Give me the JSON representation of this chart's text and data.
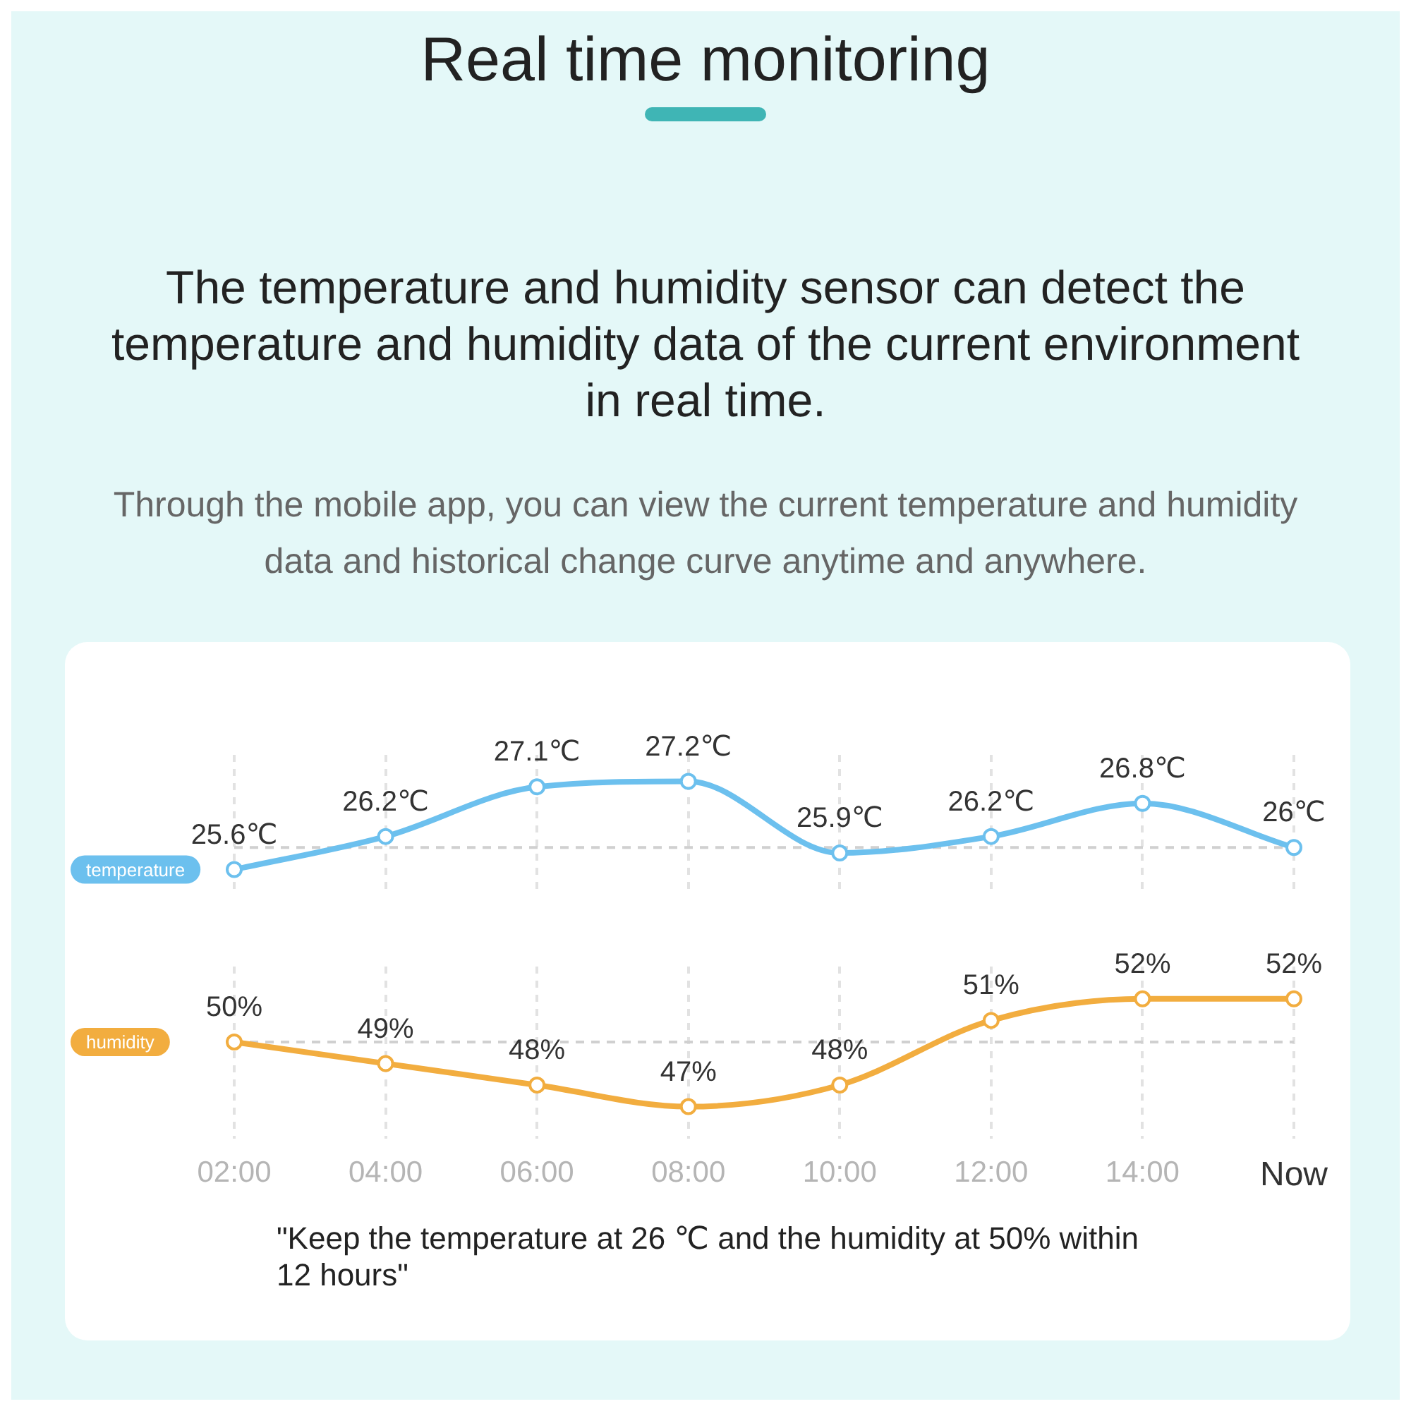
{
  "chart_data": [
    {
      "type": "line",
      "title": "Real time monitoring",
      "subtitle": "The temperature and humidity sensor can detect the temperature and humidity data of the current environment in real time.",
      "annotations": [
        "Through the mobile app, you can view the current temperature and humidity data and historical change curve anytime and anywhere."
      ],
      "categories": [
        null,
        null,
        null,
        null,
        null,
        null,
        null,
        null
      ],
      "series": [
        {
          "name": "temperature",
          "color": "#6cc0ee",
          "values": [
            25.6,
            26.2,
            27.1,
            27.2,
            25.9,
            26.2,
            26.8,
            26
          ],
          "value_labels": [
            "25.6℃",
            "26.2℃",
            "27.1℃",
            "27.2℃",
            "25.9℃",
            "26.2℃",
            "26.8℃",
            "26℃"
          ]
        }
      ],
      "ref_lines": [
        {
          "axis": "y",
          "value": 26,
          "color": "#d0d0d0",
          "line_style": "dashed"
        }
      ],
      "grid": "x",
      "legend": "left",
      "marker": "circle",
      "line_style": "solid",
      "tick_labels": false
    },
    {
      "type": "line",
      "annotations": [
        "\"Keep the temperature at 26 ℃ and the humidity at 50% within 12 hours\""
      ],
      "categories": [
        "02:00",
        "04:00",
        "06:00",
        "08:00",
        "10:00",
        "12:00",
        "14:00",
        "Now"
      ],
      "series": [
        {
          "name": "humidity",
          "color": "#f2ad3f",
          "values": [
            50,
            49,
            48,
            47,
            48,
            51,
            52,
            52
          ],
          "value_labels": [
            "50%",
            "49%",
            "48%",
            "47%",
            "48%",
            "51%",
            "52%",
            "52%"
          ]
        }
      ],
      "ref_lines": [
        {
          "axis": "y",
          "value": 50,
          "color": "#d0d0d0",
          "line_style": "dashed"
        }
      ],
      "grid": "x",
      "legend": "left",
      "marker": "circle",
      "line_style": "solid",
      "tick_labels": "x"
    }
  ]
}
